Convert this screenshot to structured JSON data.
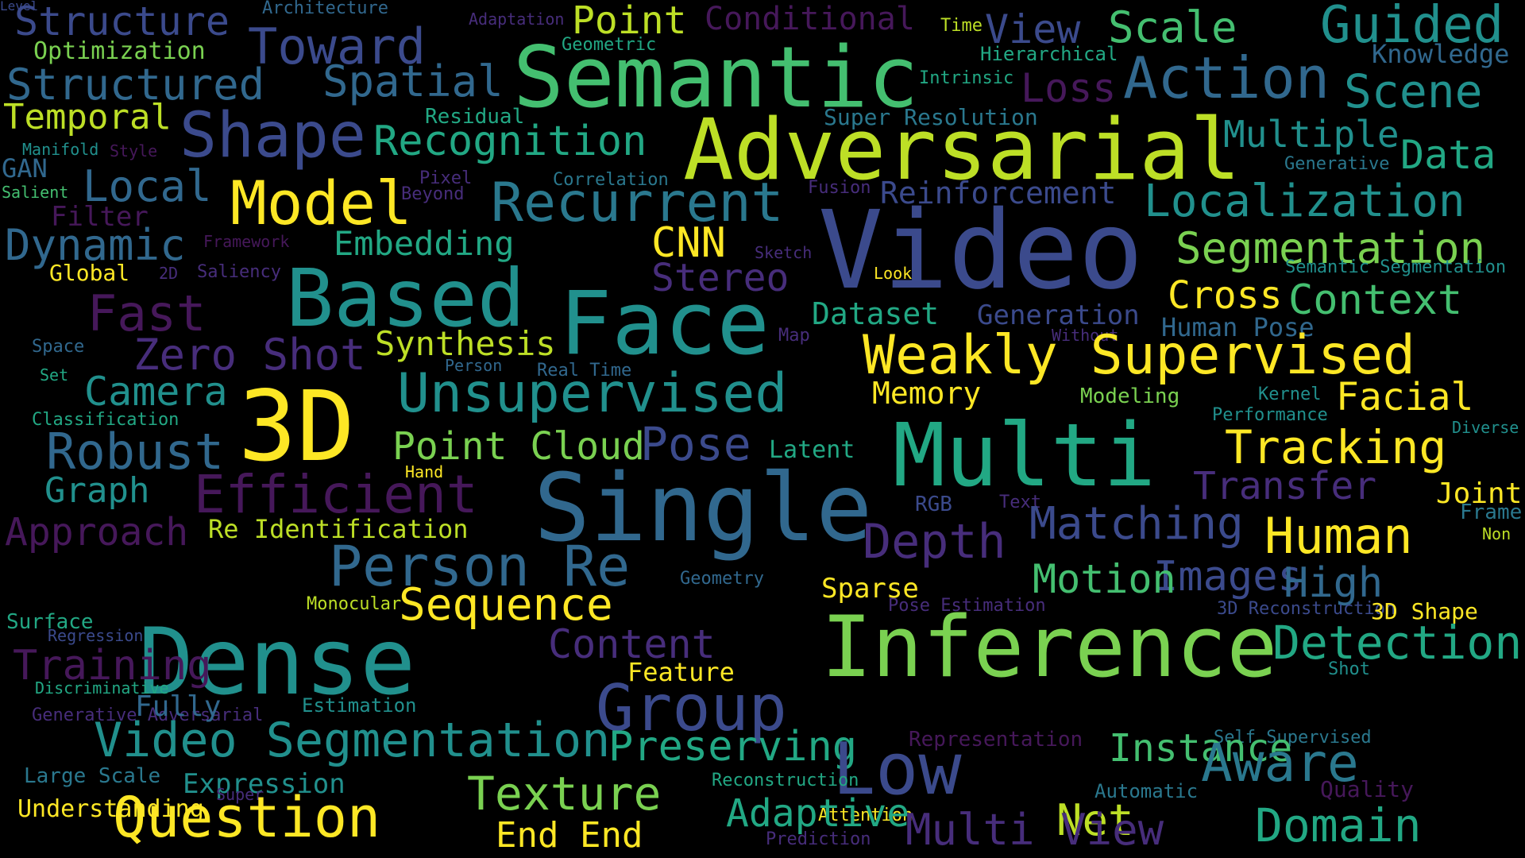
{
  "palette": {
    "background": "#000000",
    "dark_purple": "#46185a",
    "purple": "#472d7b",
    "indigo": "#3b4a8c",
    "blue": "#31688e",
    "teal_blue": "#2a788e",
    "teal": "#21908d",
    "green_teal": "#22a884",
    "green": "#44bf70",
    "light_green": "#7ad151",
    "yellow_green": "#bddf26",
    "yellow": "#fde725"
  },
  "words": [
    {
      "text": "Structure",
      "color": "#3b4a8c"
    },
    {
      "text": "Architecture",
      "color": "#31688e"
    },
    {
      "text": "Adaptation",
      "color": "#472d7b"
    },
    {
      "text": "Point",
      "color": "#bddf26"
    },
    {
      "text": "Conditional",
      "color": "#46185a"
    },
    {
      "text": "Time",
      "color": "#bddf26"
    },
    {
      "text": "View",
      "color": "#3b4a8c"
    },
    {
      "text": "Scale",
      "color": "#44bf70"
    },
    {
      "text": "Guided",
      "color": "#21908d"
    },
    {
      "text": "Optimization",
      "color": "#7ad151"
    },
    {
      "text": "Toward",
      "color": "#3b4a8c"
    },
    {
      "text": "Geometric",
      "color": "#22a884"
    },
    {
      "text": "Semantic",
      "color": "#44bf70"
    },
    {
      "text": "Hierarchical",
      "color": "#22a884"
    },
    {
      "text": "Knowledge",
      "color": "#31688e"
    },
    {
      "text": "Structured",
      "color": "#31688e"
    },
    {
      "text": "Spatial",
      "color": "#31688e"
    },
    {
      "text": "Intrinsic",
      "color": "#22a884"
    },
    {
      "text": "Loss",
      "color": "#46185a"
    },
    {
      "text": "Action",
      "color": "#31688e"
    },
    {
      "text": "Scene",
      "color": "#21908d"
    },
    {
      "text": "Temporal",
      "color": "#bddf26"
    },
    {
      "text": "Residual",
      "color": "#22a884"
    },
    {
      "text": "Super Resolution",
      "color": "#2a788e"
    },
    {
      "text": "Shape",
      "color": "#3b4a8c"
    },
    {
      "text": "Recognition",
      "color": "#22a884"
    },
    {
      "text": "Adversarial",
      "color": "#bddf26"
    },
    {
      "text": "Multiple",
      "color": "#21908d"
    },
    {
      "text": "Data",
      "color": "#22a884"
    },
    {
      "text": "Manifold",
      "color": "#21908d"
    },
    {
      "text": "Style",
      "color": "#46185a"
    },
    {
      "text": "GAN",
      "color": "#31688e"
    },
    {
      "text": "Generative",
      "color": "#2a788e"
    },
    {
      "text": "Salient",
      "color": "#44bf70"
    },
    {
      "text": "Local",
      "color": "#31688e"
    },
    {
      "text": "Pixel",
      "color": "#472d7b"
    },
    {
      "text": "Beyond",
      "color": "#472d7b"
    },
    {
      "text": "Correlation",
      "color": "#2a788e"
    },
    {
      "text": "Fusion",
      "color": "#472d7b"
    },
    {
      "text": "Model",
      "color": "#fde725"
    },
    {
      "text": "Recurrent",
      "color": "#2a788e"
    },
    {
      "text": "Reinforcement",
      "color": "#3b4a8c"
    },
    {
      "text": "Localization",
      "color": "#21908d"
    },
    {
      "text": "Filter",
      "color": "#46185a"
    },
    {
      "text": "Dynamic",
      "color": "#31688e"
    },
    {
      "text": "Framework",
      "color": "#46185a"
    },
    {
      "text": "Embedding",
      "color": "#22a884"
    },
    {
      "text": "CNN",
      "color": "#fde725"
    },
    {
      "text": "Video",
      "color": "#3b4a8c"
    },
    {
      "text": "Segmentation",
      "color": "#7ad151"
    },
    {
      "text": "Global",
      "color": "#fde725"
    },
    {
      "text": "2D",
      "color": "#472d7b"
    },
    {
      "text": "Saliency",
      "color": "#472d7b"
    },
    {
      "text": "Sketch",
      "color": "#472d7b"
    },
    {
      "text": "Stereo",
      "color": "#472d7b"
    },
    {
      "text": "Look",
      "color": "#fde725"
    },
    {
      "text": "Semantic Segmentation",
      "color": "#21908d"
    },
    {
      "text": "Based",
      "color": "#21908d"
    },
    {
      "text": "Face",
      "color": "#21908d"
    },
    {
      "text": "Cross",
      "color": "#fde725"
    },
    {
      "text": "Context",
      "color": "#44bf70"
    },
    {
      "text": "Fast",
      "color": "#46185a"
    },
    {
      "text": "Dataset",
      "color": "#22a884"
    },
    {
      "text": "Generation",
      "color": "#3b4a8c"
    },
    {
      "text": "Human Pose",
      "color": "#31688e"
    },
    {
      "text": "Space",
      "color": "#31688e"
    },
    {
      "text": "Zero Shot",
      "color": "#472d7b"
    },
    {
      "text": "Synthesis",
      "color": "#bddf26"
    },
    {
      "text": "Map",
      "color": "#472d7b"
    },
    {
      "text": "Without",
      "color": "#472d7b"
    },
    {
      "text": "Weakly Supervised",
      "color": "#fde725"
    },
    {
      "text": "Set",
      "color": "#22a884"
    },
    {
      "text": "Person",
      "color": "#31688e"
    },
    {
      "text": "Real Time",
      "color": "#31688e"
    },
    {
      "text": "Camera",
      "color": "#21908d"
    },
    {
      "text": "3D",
      "color": "#fde725"
    },
    {
      "text": "Unsupervised",
      "color": "#21908d"
    },
    {
      "text": "Memory",
      "color": "#fde725"
    },
    {
      "text": "Modeling",
      "color": "#7ad151"
    },
    {
      "text": "Kernel",
      "color": "#21908d"
    },
    {
      "text": "Facial",
      "color": "#fde725"
    },
    {
      "text": "Classification",
      "color": "#22a884"
    },
    {
      "text": "Performance",
      "color": "#21908d"
    },
    {
      "text": "Diverse",
      "color": "#21908d"
    },
    {
      "text": "Robust",
      "color": "#31688e"
    },
    {
      "text": "Point Cloud",
      "color": "#7ad151"
    },
    {
      "text": "Pose",
      "color": "#3b4a8c"
    },
    {
      "text": "Latent",
      "color": "#22a884"
    },
    {
      "text": "Multi",
      "color": "#22a884"
    },
    {
      "text": "Tracking",
      "color": "#fde725"
    },
    {
      "text": "Hand",
      "color": "#fde725"
    },
    {
      "text": "Single",
      "color": "#31688e"
    },
    {
      "text": "Transfer",
      "color": "#472d7b"
    },
    {
      "text": "Joint",
      "color": "#fde725"
    },
    {
      "text": "Graph",
      "color": "#21908d"
    },
    {
      "text": "Efficient",
      "color": "#46185a"
    },
    {
      "text": "RGB",
      "color": "#3b4a8c"
    },
    {
      "text": "Text",
      "color": "#472d7b"
    },
    {
      "text": "Frame",
      "color": "#2a788e"
    },
    {
      "text": "Approach",
      "color": "#46185a"
    },
    {
      "text": "Re Identification",
      "color": "#bddf26"
    },
    {
      "text": "Depth",
      "color": "#472d7b"
    },
    {
      "text": "Matching",
      "color": "#3b4a8c"
    },
    {
      "text": "Human",
      "color": "#fde725"
    },
    {
      "text": "Non",
      "color": "#bddf26"
    },
    {
      "text": "Person Re",
      "color": "#31688e"
    },
    {
      "text": "Geometry",
      "color": "#31688e"
    },
    {
      "text": "Images",
      "color": "#3b4a8c"
    },
    {
      "text": "Motion",
      "color": "#44bf70"
    },
    {
      "text": "High",
      "color": "#31688e"
    },
    {
      "text": "Sparse",
      "color": "#fde725"
    },
    {
      "text": "Monocular",
      "color": "#bddf26"
    },
    {
      "text": "Sequence",
      "color": "#fde725"
    },
    {
      "text": "Pose Estimation",
      "color": "#472d7b"
    },
    {
      "text": "3D Reconstruction",
      "color": "#3b4a8c"
    },
    {
      "text": "3D Shape",
      "color": "#fde725"
    },
    {
      "text": "Surface",
      "color": "#22a884"
    },
    {
      "text": "Regression",
      "color": "#3b4a8c"
    },
    {
      "text": "Content",
      "color": "#472d7b"
    },
    {
      "text": "Inference",
      "color": "#7ad151"
    },
    {
      "text": "Detection",
      "color": "#22a884"
    },
    {
      "text": "Dense",
      "color": "#21908d"
    },
    {
      "text": "Feature",
      "color": "#fde725"
    },
    {
      "text": "Shot",
      "color": "#21908d"
    },
    {
      "text": "Training",
      "color": "#46185a"
    },
    {
      "text": "Discriminative",
      "color": "#22a884"
    },
    {
      "text": "Group",
      "color": "#3b4a8c"
    },
    {
      "text": "Generative Adversarial",
      "color": "#472d7b"
    },
    {
      "text": "Fully",
      "color": "#31688e"
    },
    {
      "text": "Estimation",
      "color": "#21908d"
    },
    {
      "text": "Video Segmentation",
      "color": "#21908d"
    },
    {
      "text": "Representation",
      "color": "#46185a"
    },
    {
      "text": "Self Supervised",
      "color": "#2a788e"
    },
    {
      "text": "Preserving",
      "color": "#22a884"
    },
    {
      "text": "Instance",
      "color": "#44bf70"
    },
    {
      "text": "Low",
      "color": "#3b4a8c"
    },
    {
      "text": "Aware",
      "color": "#2a788e"
    },
    {
      "text": "Large Scale",
      "color": "#2a788e"
    },
    {
      "text": "Expression",
      "color": "#21908d"
    },
    {
      "text": "Reconstruction",
      "color": "#22a884"
    },
    {
      "text": "Automatic",
      "color": "#2a788e"
    },
    {
      "text": "Quality",
      "color": "#46185a"
    },
    {
      "text": "Understanding",
      "color": "#fde725"
    },
    {
      "text": "Super",
      "color": "#472d7b"
    },
    {
      "text": "Texture",
      "color": "#7ad151"
    },
    {
      "text": "Question",
      "color": "#fde725"
    },
    {
      "text": "Attention",
      "color": "#fde725"
    },
    {
      "text": "Adaptive",
      "color": "#22a884"
    },
    {
      "text": "Net",
      "color": "#bddf26"
    },
    {
      "text": "Domain",
      "color": "#22a884"
    },
    {
      "text": "End End",
      "color": "#fde725"
    },
    {
      "text": "Prediction",
      "color": "#472d7b"
    },
    {
      "text": "Multi View",
      "color": "#472d7b"
    },
    {
      "text": "Level",
      "color": "#3b4a8c"
    }
  ]
}
